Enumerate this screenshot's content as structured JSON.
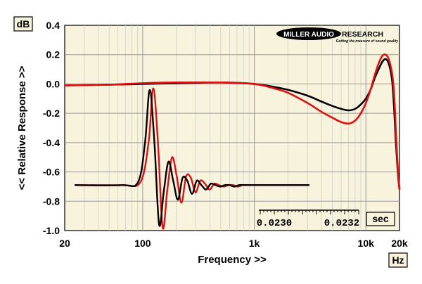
{
  "chart_data": {
    "type": "line",
    "xlabel": "Frequency >>",
    "ylabel": "<< Relative Response >>",
    "x_unit": "Hz",
    "y_unit": "dB",
    "x_scale": "log",
    "xlim": [
      20,
      20000
    ],
    "ylim": [
      -1.0,
      0.4
    ],
    "x_ticks": [
      "20",
      "100",
      "1k",
      "10k",
      "20k"
    ],
    "y_ticks": [
      "0.4",
      "0.2",
      "0.0",
      "-0.2",
      "-0.4",
      "-0.6",
      "-0.8",
      "-1.0"
    ],
    "grid": true,
    "logo": {
      "main": "MILLER AUDIO",
      "right": "RESEARCH",
      "tagline": "Getting the measure of sound quality"
    },
    "series": [
      {
        "color": "#000000",
        "x": [
          20,
          50,
          100,
          200,
          500,
          1000,
          1500,
          2000,
          3000,
          4000,
          5000,
          6000,
          7000,
          8000,
          9000,
          10000,
          11000,
          12000,
          13000,
          14000,
          15000,
          16000,
          17000,
          17500,
          18000,
          18500,
          19000,
          19500,
          20000
        ],
        "y": [
          -0.01,
          -0.005,
          0.0,
          0.005,
          0.01,
          0.0,
          -0.02,
          -0.04,
          -0.08,
          -0.12,
          -0.15,
          -0.17,
          -0.18,
          -0.17,
          -0.14,
          -0.1,
          -0.04,
          0.04,
          0.1,
          0.15,
          0.17,
          0.14,
          0.05,
          -0.05,
          -0.2,
          -0.38,
          -0.52,
          -0.64,
          -0.72
        ]
      },
      {
        "color": "#dd1111",
        "x": [
          20,
          50,
          100,
          200,
          500,
          1000,
          1500,
          2000,
          3000,
          4000,
          5000,
          6000,
          7000,
          8000,
          9000,
          10000,
          11000,
          12000,
          13000,
          14000,
          15000,
          16000,
          17000,
          17500,
          18000,
          18500,
          19000,
          19500,
          20000
        ],
        "y": [
          -0.01,
          -0.005,
          0.005,
          0.01,
          0.01,
          0.0,
          -0.03,
          -0.06,
          -0.13,
          -0.19,
          -0.23,
          -0.26,
          -0.27,
          -0.25,
          -0.2,
          -0.13,
          -0.04,
          0.06,
          0.14,
          0.19,
          0.2,
          0.17,
          0.09,
          0.02,
          -0.1,
          -0.3,
          -0.48,
          -0.62,
          -0.72
        ]
      }
    ],
    "impulse_inset": {
      "time_ticks": [
        "0.0230",
        "0.0232"
      ],
      "time_unit": "sec",
      "baseline": -0.69,
      "series": [
        {
          "color": "#dd1111",
          "t": [
            0.0,
            0.2,
            0.28,
            0.315,
            0.335,
            0.355,
            0.375,
            0.395,
            0.415,
            0.435,
            0.455,
            0.475,
            0.495,
            0.515,
            0.535,
            0.555,
            0.575,
            0.595,
            0.615,
            0.635,
            0.655,
            0.675,
            0.695,
            0.715,
            0.735,
            0.76,
            0.8,
            1.0
          ],
          "y": [
            -0.69,
            -0.69,
            -0.67,
            -0.4,
            -0.03,
            -0.4,
            -0.98,
            -0.72,
            -0.5,
            -0.63,
            -0.81,
            -0.63,
            -0.64,
            -0.74,
            -0.66,
            -0.68,
            -0.72,
            -0.68,
            -0.69,
            -0.7,
            -0.69,
            -0.69,
            -0.7,
            -0.69,
            -0.69,
            -0.69,
            -0.69,
            -0.69
          ]
        },
        {
          "color": "#000000",
          "t": [
            0.0,
            0.2,
            0.27,
            0.3,
            0.32,
            0.34,
            0.36,
            0.38,
            0.4,
            0.42,
            0.44,
            0.46,
            0.48,
            0.5,
            0.52,
            0.54,
            0.56,
            0.58,
            0.6,
            0.62,
            0.64,
            0.66,
            0.68,
            0.7,
            0.72,
            0.75,
            0.8,
            1.0
          ],
          "y": [
            -0.69,
            -0.69,
            -0.67,
            -0.4,
            -0.04,
            -0.4,
            -0.96,
            -0.73,
            -0.53,
            -0.66,
            -0.79,
            -0.64,
            -0.66,
            -0.75,
            -0.66,
            -0.69,
            -0.72,
            -0.68,
            -0.69,
            -0.7,
            -0.69,
            -0.69,
            -0.7,
            -0.69,
            -0.69,
            -0.69,
            -0.69,
            -0.69
          ]
        }
      ]
    }
  }
}
